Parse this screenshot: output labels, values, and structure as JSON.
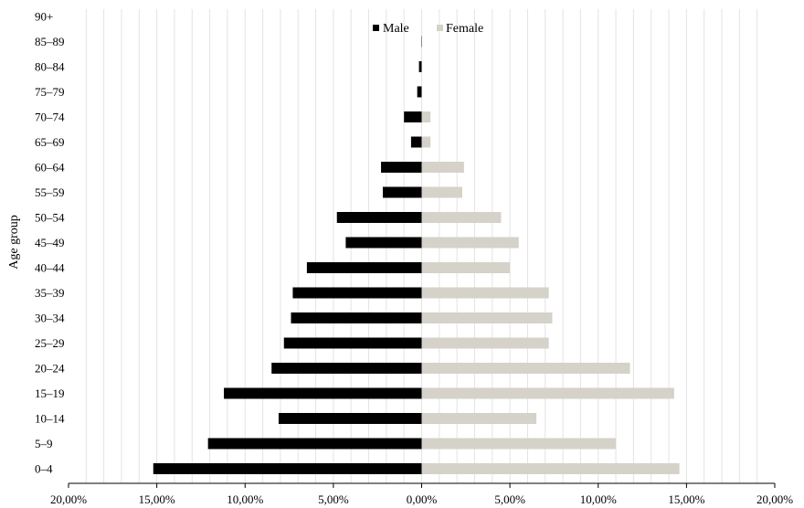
{
  "chart_data": {
    "type": "bar",
    "orientation": "horizontal",
    "layout": "population-pyramid",
    "title": "",
    "xlabel": "",
    "ylabel": "Age group",
    "xlim": [
      -20,
      20
    ],
    "x_ticks": [
      -20,
      -15,
      -10,
      -5,
      0,
      5,
      10,
      15,
      20
    ],
    "x_tick_labels": [
      "20,00%",
      "15,00%",
      "10,00%",
      "5,00%",
      "0,00%",
      "5,00%",
      "10,00%",
      "15,00%",
      "20,00%"
    ],
    "grid": "vertical minor gridlines",
    "legend_position": "top-center",
    "categories": [
      "0–4",
      "5–9",
      "10–14",
      "15–19",
      "20–24",
      "25–29",
      "30–34",
      "35–39",
      "40–44",
      "45–49",
      "50–54",
      "55–59",
      "60–64",
      "65–69",
      "70–74",
      "75–79",
      "80–84",
      "85–89",
      "90+"
    ],
    "series": [
      {
        "name": "Male",
        "color": "#000000",
        "values": [
          15.2,
          12.1,
          8.1,
          11.2,
          8.5,
          7.8,
          7.4,
          7.3,
          6.5,
          4.3,
          4.8,
          2.2,
          2.3,
          0.6,
          1.0,
          0.25,
          0.15,
          0.02,
          0
        ]
      },
      {
        "name": "Female",
        "color": "#d4d2c9",
        "values": [
          14.6,
          11.0,
          6.5,
          14.3,
          11.8,
          7.2,
          7.4,
          7.2,
          5.0,
          5.5,
          4.5,
          2.3,
          2.4,
          0.5,
          0.5,
          0,
          0,
          0,
          0
        ]
      }
    ]
  }
}
